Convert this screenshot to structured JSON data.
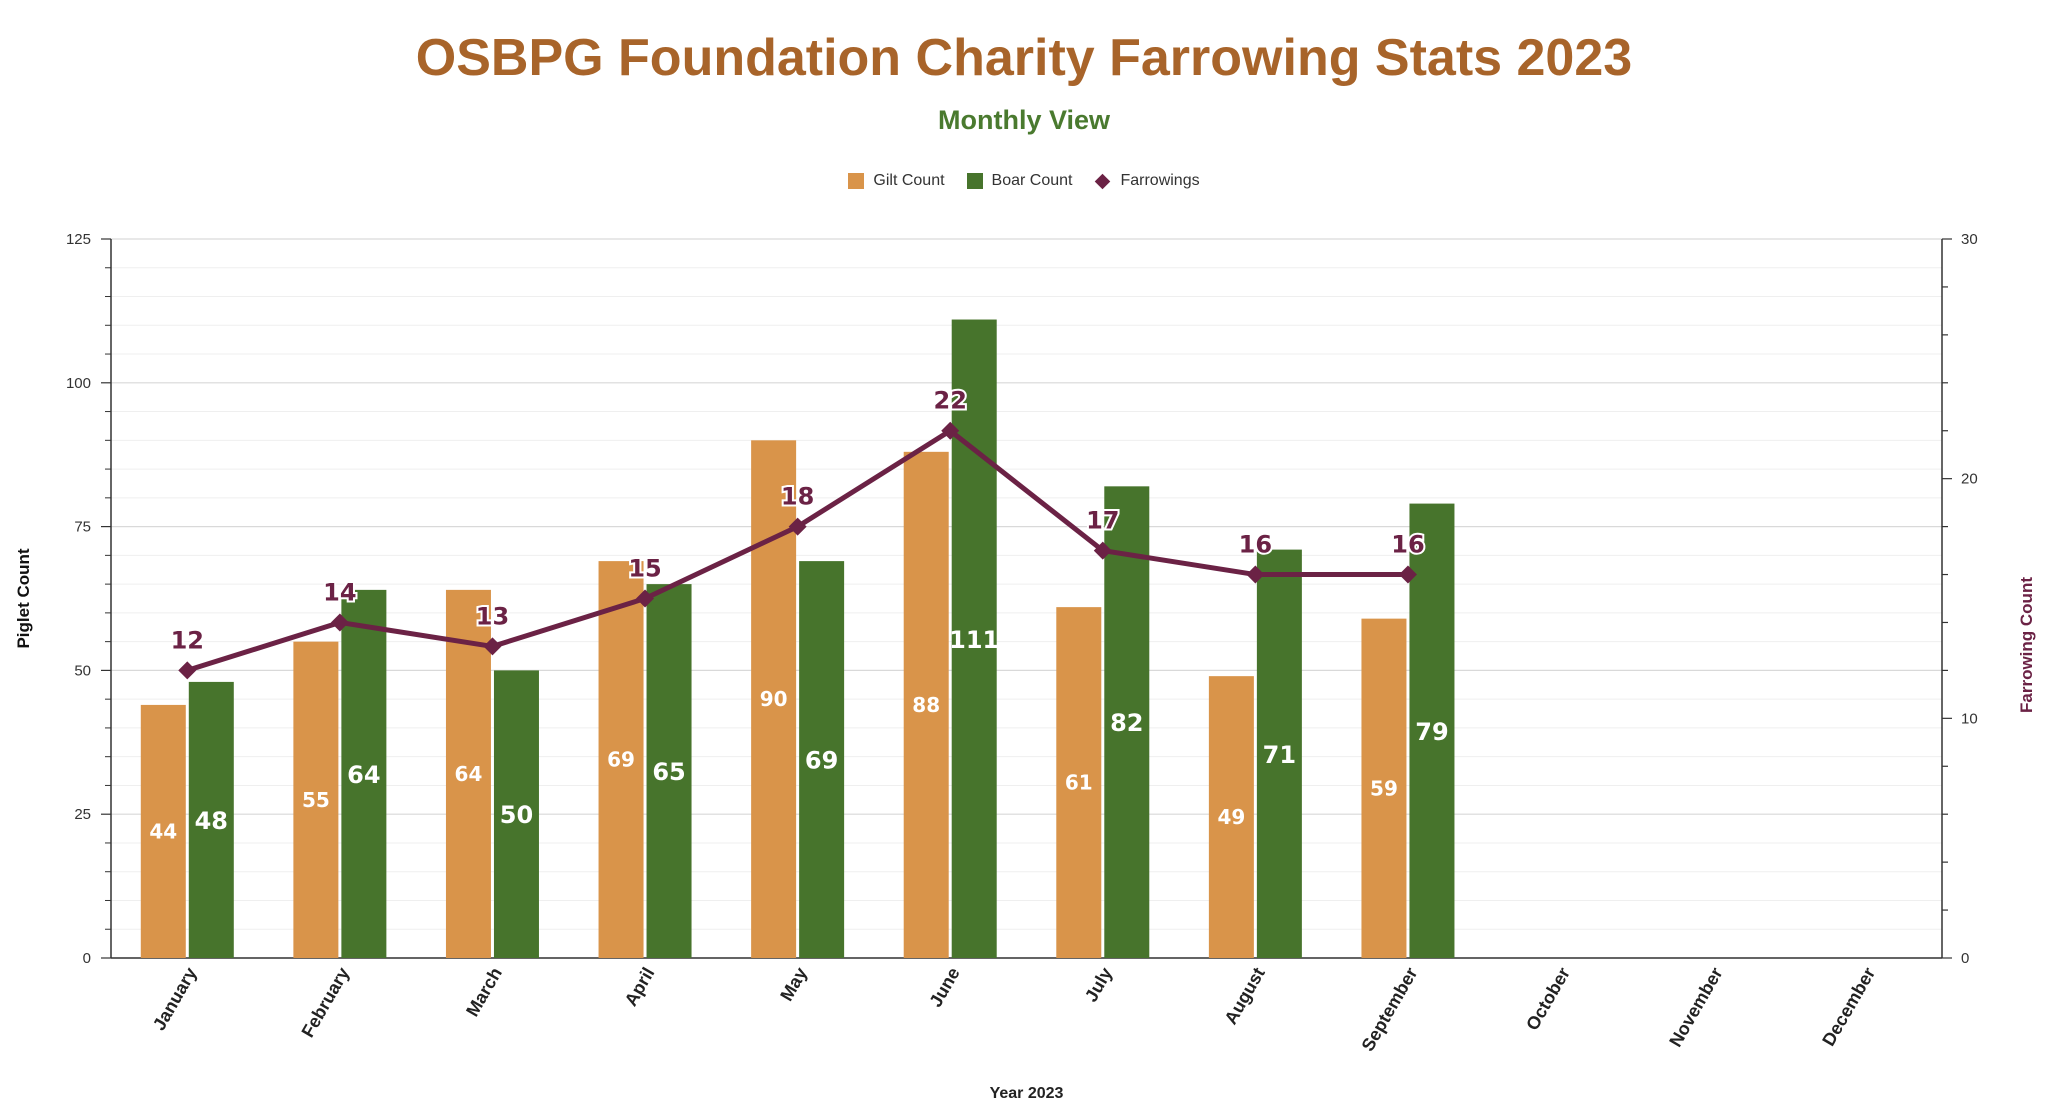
{
  "colors": {
    "title": "#a8642a",
    "subtitle": "#4a7a2f",
    "gilt": "#d9944a",
    "boar": "#47742c",
    "farrowings": "#6b2245",
    "axis": "#333333",
    "grid": "#d9d9d9",
    "minor_grid": "#efefef"
  },
  "chart_data": {
    "type": "bar",
    "title": "OSBPG Foundation Charity Farrowing Stats 2023",
    "subtitle": "Monthly View",
    "xlabel": "Year 2023",
    "ylabel": "Piglet Count",
    "y2label": "Farrowing Count",
    "ylim": [
      0,
      125
    ],
    "y2lim": [
      0,
      30
    ],
    "yticks": [
      0,
      25,
      50,
      75,
      100,
      125
    ],
    "y2ticks": [
      0,
      10,
      20,
      30
    ],
    "grid": true,
    "legend_position": "top-center",
    "categories": [
      "January",
      "February",
      "March",
      "April",
      "May",
      "June",
      "July",
      "August",
      "September",
      "October",
      "November",
      "December"
    ],
    "series": [
      {
        "name": "Gilt Count",
        "type": "bar",
        "axis": "left",
        "values": [
          44,
          55,
          64,
          69,
          90,
          88,
          61,
          49,
          59,
          null,
          null,
          null
        ]
      },
      {
        "name": "Boar Count",
        "type": "bar",
        "axis": "left",
        "values": [
          48,
          64,
          50,
          65,
          69,
          111,
          82,
          71,
          79,
          null,
          null,
          null
        ]
      },
      {
        "name": "Farrowings",
        "type": "line",
        "marker": "diamond",
        "axis": "right",
        "values": [
          12,
          14,
          13,
          15,
          18,
          22,
          17,
          16,
          16,
          null,
          null,
          null
        ]
      }
    ]
  }
}
